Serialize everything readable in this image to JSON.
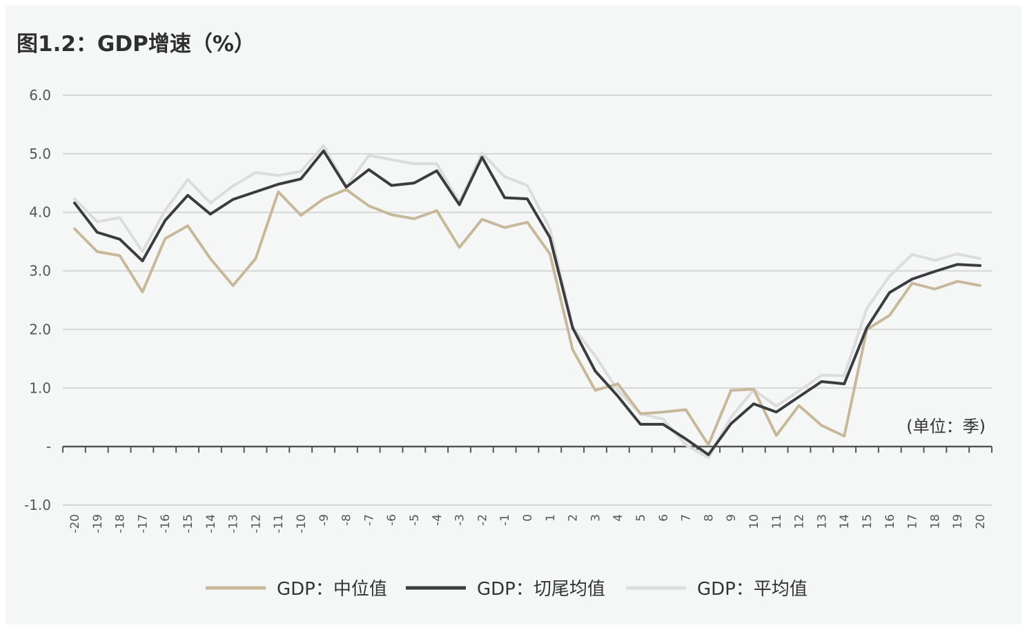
{
  "chart_data": {
    "type": "line",
    "title": "图1.2：GDP增速（%）",
    "unit_note": "(单位：季)",
    "xlabel": "",
    "ylabel": "",
    "ylim": [
      -1.0,
      6.0
    ],
    "y_ticks": [
      {
        "value": 6.0,
        "label": "6.0"
      },
      {
        "value": 5.0,
        "label": "5.0"
      },
      {
        "value": 4.0,
        "label": "4.0"
      },
      {
        "value": 3.0,
        "label": "3.0"
      },
      {
        "value": 2.0,
        "label": "2.0"
      },
      {
        "value": 1.0,
        "label": "1.0"
      },
      {
        "value": 0.0,
        "label": "-"
      },
      {
        "value": -1.0,
        "label": "-1.0"
      }
    ],
    "grid": true,
    "legend_position": "bottom",
    "x": [
      -20,
      -19,
      -18,
      -17,
      -16,
      -15,
      -14,
      -13,
      -12,
      -11,
      -10,
      -9,
      -8,
      -7,
      -6,
      -5,
      -4,
      -3,
      -2,
      -1,
      0,
      1,
      2,
      3,
      4,
      5,
      6,
      7,
      8,
      9,
      10,
      11,
      12,
      13,
      14,
      15,
      16,
      17,
      18,
      19,
      20
    ],
    "series": [
      {
        "name": "GDP：中位值",
        "color": "#c8b89a",
        "values": [
          3.72,
          3.33,
          3.26,
          2.64,
          3.55,
          3.77,
          3.21,
          2.75,
          3.21,
          4.35,
          3.95,
          4.23,
          4.39,
          4.11,
          3.96,
          3.89,
          4.03,
          3.4,
          3.88,
          3.74,
          3.83,
          3.29,
          1.66,
          0.96,
          1.07,
          0.56,
          0.59,
          0.63,
          0.03,
          0.96,
          0.98,
          0.19,
          0.7,
          0.36,
          0.18,
          2.0,
          2.24,
          2.79,
          2.69,
          2.82,
          2.75
        ]
      },
      {
        "name": "GDP：切尾均值",
        "color": "#3a3d3f",
        "values": [
          4.16,
          3.66,
          3.54,
          3.17,
          3.86,
          4.29,
          3.97,
          4.22,
          4.35,
          4.48,
          4.57,
          5.05,
          4.43,
          4.73,
          4.46,
          4.5,
          4.71,
          4.13,
          4.94,
          4.25,
          4.23,
          3.57,
          2.03,
          1.29,
          0.86,
          0.38,
          0.38,
          0.13,
          -0.14,
          0.39,
          0.73,
          0.59,
          0.85,
          1.11,
          1.07,
          2.03,
          2.63,
          2.86,
          2.99,
          3.11,
          3.09
        ]
      },
      {
        "name": "GDP：平均值",
        "color": "#dcdcdc",
        "values": [
          4.23,
          3.84,
          3.91,
          3.33,
          4.03,
          4.56,
          4.16,
          4.45,
          4.68,
          4.63,
          4.7,
          5.14,
          4.44,
          4.97,
          4.9,
          4.83,
          4.83,
          4.17,
          5.01,
          4.61,
          4.46,
          3.72,
          2.05,
          1.55,
          0.96,
          0.56,
          0.47,
          0.03,
          -0.19,
          0.5,
          0.97,
          0.69,
          0.95,
          1.22,
          1.21,
          2.36,
          2.91,
          3.28,
          3.18,
          3.29,
          3.21
        ]
      }
    ]
  }
}
